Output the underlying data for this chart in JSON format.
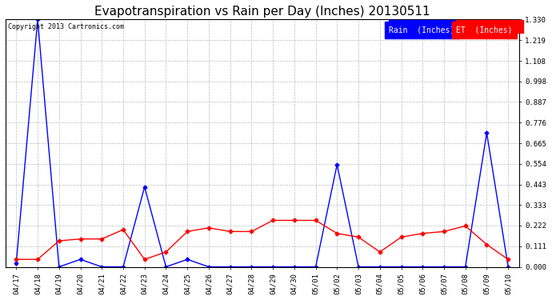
{
  "title": "Evapotranspiration vs Rain per Day (Inches) 20130511",
  "copyright": "Copyright 2013 Cartronics.com",
  "x_labels": [
    "04/17",
    "04/18",
    "04/19",
    "04/20",
    "04/21",
    "04/22",
    "04/23",
    "04/24",
    "04/25",
    "04/26",
    "04/27",
    "04/28",
    "04/29",
    "04/30",
    "05/01",
    "05/02",
    "05/03",
    "05/04",
    "05/05",
    "05/06",
    "05/07",
    "05/08",
    "05/09",
    "05/10"
  ],
  "rain_data": [
    0.02,
    1.33,
    0.0,
    0.04,
    0.0,
    0.0,
    0.43,
    0.0,
    0.04,
    0.0,
    0.0,
    0.0,
    0.0,
    0.0,
    0.0,
    0.55,
    0.0,
    0.0,
    0.0,
    0.0,
    0.0,
    0.0,
    0.72,
    0.0
  ],
  "et_data": [
    0.04,
    0.04,
    0.14,
    0.15,
    0.15,
    0.2,
    0.04,
    0.08,
    0.19,
    0.21,
    0.19,
    0.19,
    0.25,
    0.25,
    0.25,
    0.18,
    0.16,
    0.08,
    0.16,
    0.18,
    0.19,
    0.22,
    0.12,
    0.04
  ],
  "rain_color": "blue",
  "et_color": "red",
  "background_color": "white",
  "grid_color": "#bbbbbb",
  "y_ticks": [
    0.0,
    0.111,
    0.222,
    0.333,
    0.443,
    0.554,
    0.665,
    0.776,
    0.887,
    0.998,
    1.108,
    1.219,
    1.33
  ],
  "ylim": [
    0.0,
    1.33
  ],
  "title_fontsize": 11,
  "legend_rain_label": "Rain  (Inches)",
  "legend_et_label": "ET  (Inches)"
}
